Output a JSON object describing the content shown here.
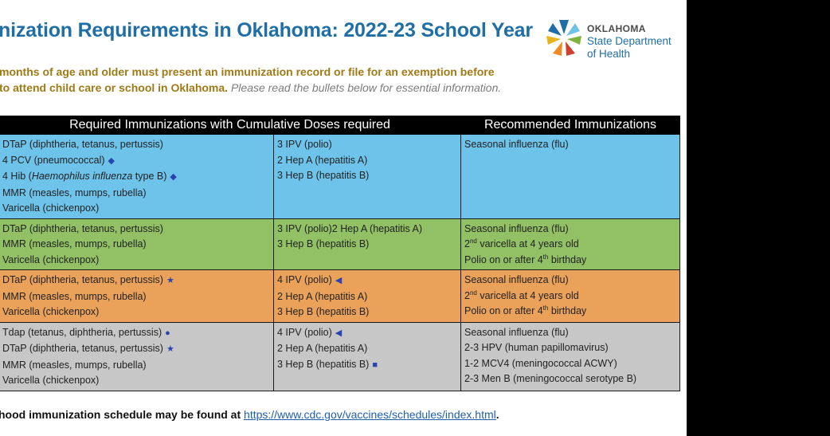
{
  "header": {
    "title": "nization Requirements in Oklahoma:  2022-23 School Year",
    "logo": {
      "line1": "OKLAHOMA",
      "line2": "State Department",
      "line3": "of Health",
      "colors": [
        "#1f6fa6",
        "#6ec3ea",
        "#f08a24",
        "#e8b31c",
        "#7fb33d",
        "#d0402c"
      ]
    }
  },
  "intro": {
    "line1": "months of age and older must present an immunization record or file for an exemption before",
    "line2_bold": "to attend child care or school in Oklahoma.",
    "line2_italic": "Please read the bullets below for essential information."
  },
  "table": {
    "header_required": "Required Immunizations with Cumulative Doses required",
    "header_recommended": "Recommended Immunizations",
    "rows": [
      {
        "color": "#6ec3ea",
        "col1": [
          {
            "text": "DTaP (diphtheria, tetanus, pertussis)"
          },
          {
            "text": "4 PCV (pneumococcal)",
            "mark": "◆"
          },
          {
            "pre": "4 Hib (",
            "italic": "Haemophilus influenza",
            "post": " type B)",
            "mark": "◆"
          },
          {
            "text": "MMR (measles, mumps, rubella)"
          },
          {
            "text": "Varicella (chickenpox)"
          }
        ],
        "col2": [
          {
            "text": "3 IPV (polio)"
          },
          {
            "text": "2 Hep A (hepatitis A)"
          },
          {
            "text": "3 Hep B (hepatitis B)"
          }
        ],
        "col3": [
          {
            "text": "Seasonal influenza (flu)"
          }
        ]
      },
      {
        "color": "#92c064",
        "col1": [
          {
            "text": "DTaP (diphtheria, tetanus, pertussis)"
          },
          {
            "text": "MMR (measles, mumps, rubella)"
          },
          {
            "text": "Varicella (chickenpox)"
          }
        ],
        "col2": [
          {
            "text": "3 IPV (polio)2 Hep A (hepatitis A)"
          },
          {
            "text": "3 Hep B (hepatitis B)"
          }
        ],
        "col3": [
          {
            "text": "Seasonal influenza (flu)"
          },
          {
            "pre": "2",
            "sup": "nd",
            "post": " varicella at 4 years old"
          },
          {
            "pre": "Polio on or after 4",
            "sup": "th",
            "post": " birthday"
          }
        ]
      },
      {
        "color": "#eaa15a",
        "col1": [
          {
            "text": "DTaP (diphtheria, tetanus, pertussis)",
            "mark": "★"
          },
          {
            "text": "MMR (measles, mumps, rubella)"
          },
          {
            "text": "Varicella (chickenpox)"
          }
        ],
        "col2": [
          {
            "text": "4 IPV (polio)",
            "mark": "◀"
          },
          {
            "text": "2 Hep A (hepatitis A)"
          },
          {
            "text": "3 Hep B (hepatitis B)"
          }
        ],
        "col3": [
          {
            "text": "Seasonal influenza (flu)"
          },
          {
            "pre": "2",
            "sup": "nd",
            "post": " varicella at 4 years old"
          },
          {
            "pre": "Polio on or after 4",
            "sup": "th",
            "post": " birthday"
          }
        ]
      },
      {
        "color": "#c7c7c7",
        "col1": [
          {
            "text": "Tdap (tetanus, diphtheria, pertussis)",
            "mark": "●"
          },
          {
            "text": "DTaP (diphtheria, tetanus, pertussis)",
            "mark": "★"
          },
          {
            "text": "MMR (measles, mumps, rubella)"
          },
          {
            "text": "Varicella (chickenpox)"
          }
        ],
        "col2": [
          {
            "text": "4 IPV (polio)",
            "mark": "◀"
          },
          {
            "text": "2 Hep A (hepatitis A)"
          },
          {
            "text": "3 Hep B (hepatitis B)",
            "mark": "■"
          }
        ],
        "col3": [
          {
            "text": "Seasonal influenza (flu)"
          },
          {
            "text": "2-3 HPV (human papillomavirus)"
          },
          {
            "text": "1-2 MCV4 (meningococcal ACWY)"
          },
          {
            "text": "2-3 Men B (meningococcal serotype B)"
          }
        ]
      }
    ]
  },
  "footer": {
    "text": "hood immunization schedule may be found at ",
    "link": "https://www.cdc.gov/vaccines/schedules/index.html",
    "end": "."
  }
}
